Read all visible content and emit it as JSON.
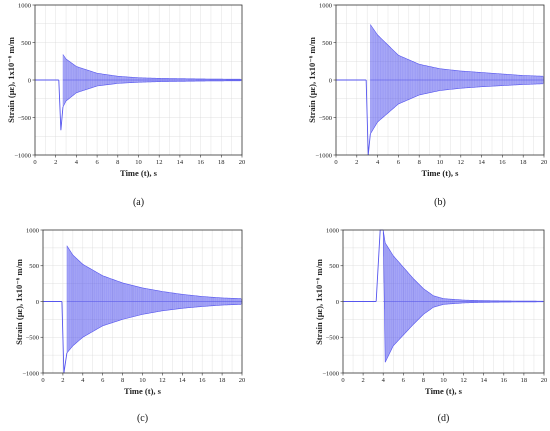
{
  "figure": {
    "accent_color": "#5555ee",
    "axis_color": "#333333",
    "grid_color": "#d9d9d9"
  },
  "chart_data": [
    {
      "type": "line",
      "panel_label": "(a)",
      "xlabel": "Time (t), s",
      "ylabel": "Strain (με), 1x10⁻⁶ m/m",
      "xlim": [
        0,
        20
      ],
      "ylim": [
        -1000,
        1000
      ],
      "x_ticks": [
        0,
        2,
        4,
        6,
        8,
        10,
        12,
        14,
        16,
        18,
        20
      ],
      "y_ticks": [
        -1000,
        -500,
        0,
        500,
        1000
      ],
      "y_tick_labels": [
        "−1000",
        "−500",
        "0",
        "500",
        "1000"
      ],
      "grid": true,
      "series": [
        {
          "color": "#5555ee",
          "x": [
            0,
            2.0,
            2.3,
            2.5,
            2.7,
            3,
            4,
            6,
            8,
            10,
            12,
            14,
            16,
            18,
            20
          ],
          "y_upper": [
            0,
            0,
            0,
            -670,
            340,
            280,
            180,
            90,
            50,
            30,
            22,
            18,
            14,
            12,
            10
          ],
          "y_lower": [
            0,
            0,
            0,
            -670,
            -360,
            -280,
            -170,
            -80,
            -45,
            -30,
            -22,
            -18,
            -14,
            -12,
            -10
          ]
        }
      ]
    },
    {
      "type": "line",
      "panel_label": "(b)",
      "xlabel": "Time (t), s",
      "ylabel": "Strain (με), 1x10⁻⁶ m/m",
      "xlim": [
        0,
        20
      ],
      "ylim": [
        -1000,
        1000
      ],
      "x_ticks": [
        0,
        2,
        4,
        6,
        8,
        10,
        12,
        14,
        16,
        18,
        20
      ],
      "y_ticks": [
        -1000,
        -500,
        0,
        500,
        1000
      ],
      "y_tick_labels": [
        "−1000",
        "−500",
        "0",
        "500",
        "1000"
      ],
      "grid": true,
      "series": [
        {
          "color": "#5555ee",
          "x": [
            0,
            2.6,
            2.9,
            3.1,
            3.3,
            4,
            6,
            8,
            10,
            12,
            14,
            16,
            18,
            20
          ],
          "y_upper": [
            0,
            0,
            0,
            -1000,
            740,
            600,
            330,
            210,
            150,
            120,
            100,
            80,
            60,
            50
          ],
          "y_lower": [
            0,
            0,
            0,
            -1000,
            -720,
            -560,
            -320,
            -200,
            -140,
            -110,
            -90,
            -75,
            -60,
            -50
          ]
        }
      ]
    },
    {
      "type": "line",
      "panel_label": "(c)",
      "xlabel": "Time (t), s",
      "ylabel": "Strain (με), 1x10⁻⁶ m/m",
      "xlim": [
        0,
        20
      ],
      "ylim": [
        -1000,
        1000
      ],
      "x_ticks": [
        0,
        2,
        4,
        6,
        8,
        10,
        12,
        14,
        16,
        18,
        20
      ],
      "y_ticks": [
        -1000,
        -500,
        0,
        500,
        1000
      ],
      "y_tick_labels": [
        "−1000",
        "−500",
        "0",
        "500",
        "1000"
      ],
      "grid": true,
      "series": [
        {
          "color": "#5555ee",
          "x": [
            0,
            1.6,
            1.9,
            2.1,
            2.4,
            3,
            4,
            6,
            8,
            10,
            12,
            14,
            16,
            18,
            20
          ],
          "y_upper": [
            0,
            0,
            0,
            -1000,
            780,
            650,
            520,
            360,
            260,
            190,
            140,
            100,
            70,
            50,
            40
          ],
          "y_lower": [
            0,
            0,
            0,
            -1000,
            -720,
            -620,
            -500,
            -340,
            -250,
            -180,
            -130,
            -95,
            -70,
            -50,
            -40
          ]
        }
      ]
    },
    {
      "type": "line",
      "panel_label": "(d)",
      "xlabel": "Time (t), s",
      "ylabel": "Strain (με), 1x10⁻⁶ m/m",
      "xlim": [
        0,
        20
      ],
      "ylim": [
        -1000,
        1000
      ],
      "x_ticks": [
        0,
        2,
        4,
        6,
        8,
        10,
        12,
        14,
        16,
        18,
        20
      ],
      "y_ticks": [
        -1000,
        -500,
        0,
        500,
        1000
      ],
      "y_tick_labels": [
        "−1000",
        "−500",
        "0",
        "500",
        "1000"
      ],
      "grid": true,
      "series": [
        {
          "color": "#5555ee",
          "x": [
            0,
            3.0,
            3.3,
            3.7,
            4.0,
            4.2,
            5,
            6,
            7,
            8,
            9,
            10,
            12,
            14,
            16,
            18,
            20
          ],
          "y_upper": [
            0,
            0,
            0,
            1000,
            1000,
            820,
            640,
            480,
            320,
            180,
            80,
            40,
            20,
            12,
            8,
            6,
            5
          ],
          "y_lower": [
            0,
            0,
            0,
            1000,
            1000,
            -850,
            -620,
            -470,
            -320,
            -180,
            -80,
            -40,
            -20,
            -12,
            -8,
            -6,
            -5
          ]
        }
      ]
    }
  ]
}
